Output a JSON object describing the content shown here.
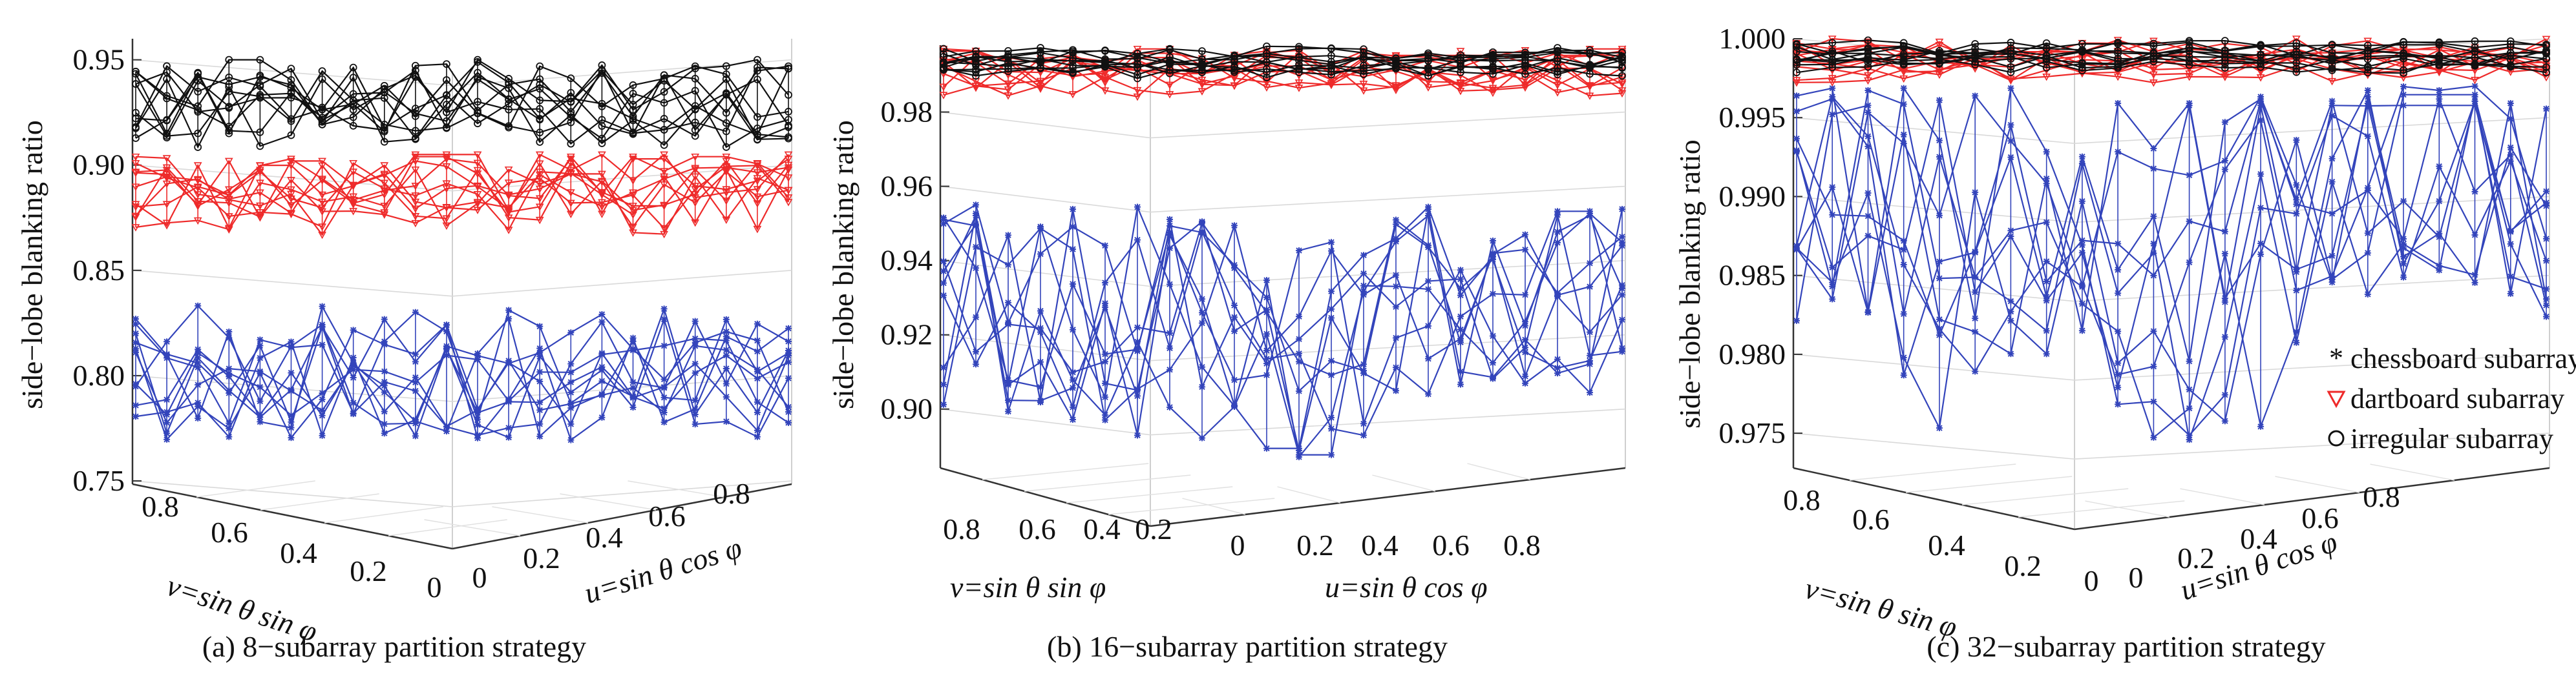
{
  "figure": {
    "series_colors": {
      "chessboard subarray": "#3344bb",
      "dartboard subarray": "#ee2a2a",
      "irregular subarray": "#111111"
    },
    "legend": [
      {
        "name": "chessboard subarray",
        "marker": "star",
        "color": "#3344bb"
      },
      {
        "name": "dartboard subarray",
        "marker": "triangle-down",
        "color": "#ee2a2a"
      },
      {
        "name": "irregular subarray",
        "marker": "circle",
        "color": "#111111"
      }
    ]
  },
  "chart_data": [
    {
      "type": "surface",
      "caption": "(a) 8−subarray partition strategy",
      "zlabel": "side−lobe blanking ratio",
      "vlabel": "v=sin θ sin φ",
      "ulabel": "u=sin θ cos φ",
      "zlim": [
        0.75,
        0.96
      ],
      "zticks": [
        "0.95",
        "0.90",
        "0.85",
        "0.80",
        "0.75"
      ],
      "v_ticks": [
        "0.8",
        "0.6",
        "0.4",
        "0.2",
        "0"
      ],
      "u_ticks": [
        "0",
        "0.2",
        "0.4",
        "0.6",
        "0.8"
      ],
      "series": [
        {
          "name": "irregular subarray",
          "mean": 0.935,
          "range": [
            0.91,
            0.95
          ]
        },
        {
          "name": "dartboard subarray",
          "mean": 0.895,
          "range": [
            0.86,
            0.905
          ]
        },
        {
          "name": "chessboard subarray",
          "mean": 0.805,
          "range": [
            0.775,
            0.84
          ]
        }
      ]
    },
    {
      "type": "surface",
      "caption": "(b) 16−subarray partition strategy",
      "zlabel": "side−lobe blanking ratio",
      "vlabel": "v=sin θ sin φ",
      "ulabel": "u=sin θ cos φ",
      "zlim": [
        0.885,
        0.998
      ],
      "zticks": [
        "0.98",
        "0.96",
        "0.94",
        "0.92",
        "0.90"
      ],
      "v_ticks": [
        "0.8",
        "0.6",
        "0.4",
        "0.2"
      ],
      "u_ticks": [
        "0",
        "0.2",
        "0.4",
        "0.6",
        "0.8"
      ],
      "series": [
        {
          "name": "irregular subarray",
          "mean": 0.996,
          "range": [
            0.994,
            0.998
          ]
        },
        {
          "name": "dartboard subarray",
          "mean": 0.994,
          "range": [
            0.985,
            0.997
          ]
        },
        {
          "name": "chessboard subarray",
          "mean": 0.935,
          "range": [
            0.89,
            0.955
          ]
        }
      ]
    },
    {
      "type": "surface",
      "caption": "(c) 32−subarray partition strategy",
      "zlabel": "side−lobe blanking ratio",
      "vlabel": "v=sin θ sin φ",
      "ulabel": "u=sin θ cos φ",
      "zlim": [
        0.973,
        1.0
      ],
      "zticks": [
        "1.000",
        "0.995",
        "0.990",
        "0.985",
        "0.980",
        "0.975"
      ],
      "v_ticks": [
        "0.8",
        "0.6",
        "0.4",
        "0.2",
        "0"
      ],
      "u_ticks": [
        "0",
        "0.2",
        "0.4",
        "0.6",
        "0.8"
      ],
      "series": [
        {
          "name": "irregular subarray",
          "mean": 0.9995,
          "range": [
            0.999,
            1.0
          ]
        },
        {
          "name": "dartboard subarray",
          "mean": 0.9993,
          "range": [
            0.998,
            1.0
          ]
        },
        {
          "name": "chessboard subarray",
          "mean": 0.993,
          "range": [
            0.975,
            0.997
          ]
        }
      ]
    }
  ]
}
